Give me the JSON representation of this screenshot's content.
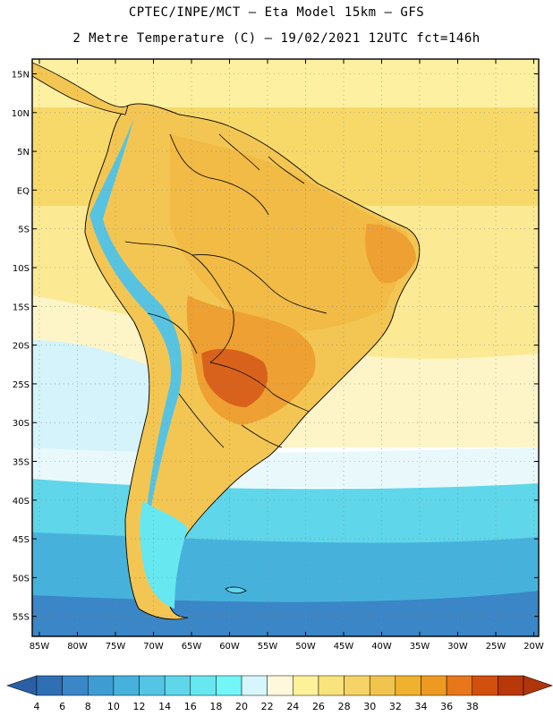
{
  "header": {
    "title_line1": "CPTEC/INPE/MCT –  Eta Model 15km – GFS",
    "title_line2": "2 Metre Temperature (C) – 19/02/2021 12UTC fct=146h"
  },
  "map": {
    "lat_labels": [
      "15N",
      "10N",
      "5N",
      "EQ",
      "5S",
      "10S",
      "15S",
      "20S",
      "25S",
      "30S",
      "35S",
      "40S",
      "45S",
      "50S",
      "55S"
    ],
    "lon_labels": [
      "85W",
      "80W",
      "75W",
      "70W",
      "65W",
      "60W",
      "55W",
      "50W",
      "45W",
      "40W",
      "35W",
      "30W",
      "25W",
      "20W"
    ]
  },
  "colorbar": {
    "labels": [
      "4",
      "6",
      "8",
      "10",
      "12",
      "14",
      "16",
      "18",
      "20",
      "22",
      "24",
      "26",
      "28",
      "30",
      "32",
      "34",
      "36",
      "38"
    ],
    "colors": [
      "#2f6fb4",
      "#3a86c6",
      "#3f9cd2",
      "#46b2dc",
      "#54c5e4",
      "#5fd6ea",
      "#67e7f0",
      "#72f6f8",
      "#d6f6fb",
      "#fff8dc",
      "#fdf29a",
      "#f9e37c",
      "#f5d366",
      "#f1c44e",
      "#f0b12e",
      "#ee9a22",
      "#e8761a",
      "#d24f0e",
      "#b8380a"
    ],
    "low_arrow_color": "#2a5fa6",
    "high_arrow_color": "#b0350a"
  },
  "palette": {
    "ocean_tropical": "#f7d96a",
    "ocean_subtropical": "#fdf3b0",
    "ocean_cool": "#d4f3fa",
    "ocean_cold": "#5fd6ea",
    "ocean_colder": "#46b2dc",
    "ocean_coldest": "#3a86c6",
    "land_warm": "#f3c653",
    "land_hot": "#eea032",
    "land_hottest": "#d8621c",
    "andes": "#58c3e0"
  }
}
